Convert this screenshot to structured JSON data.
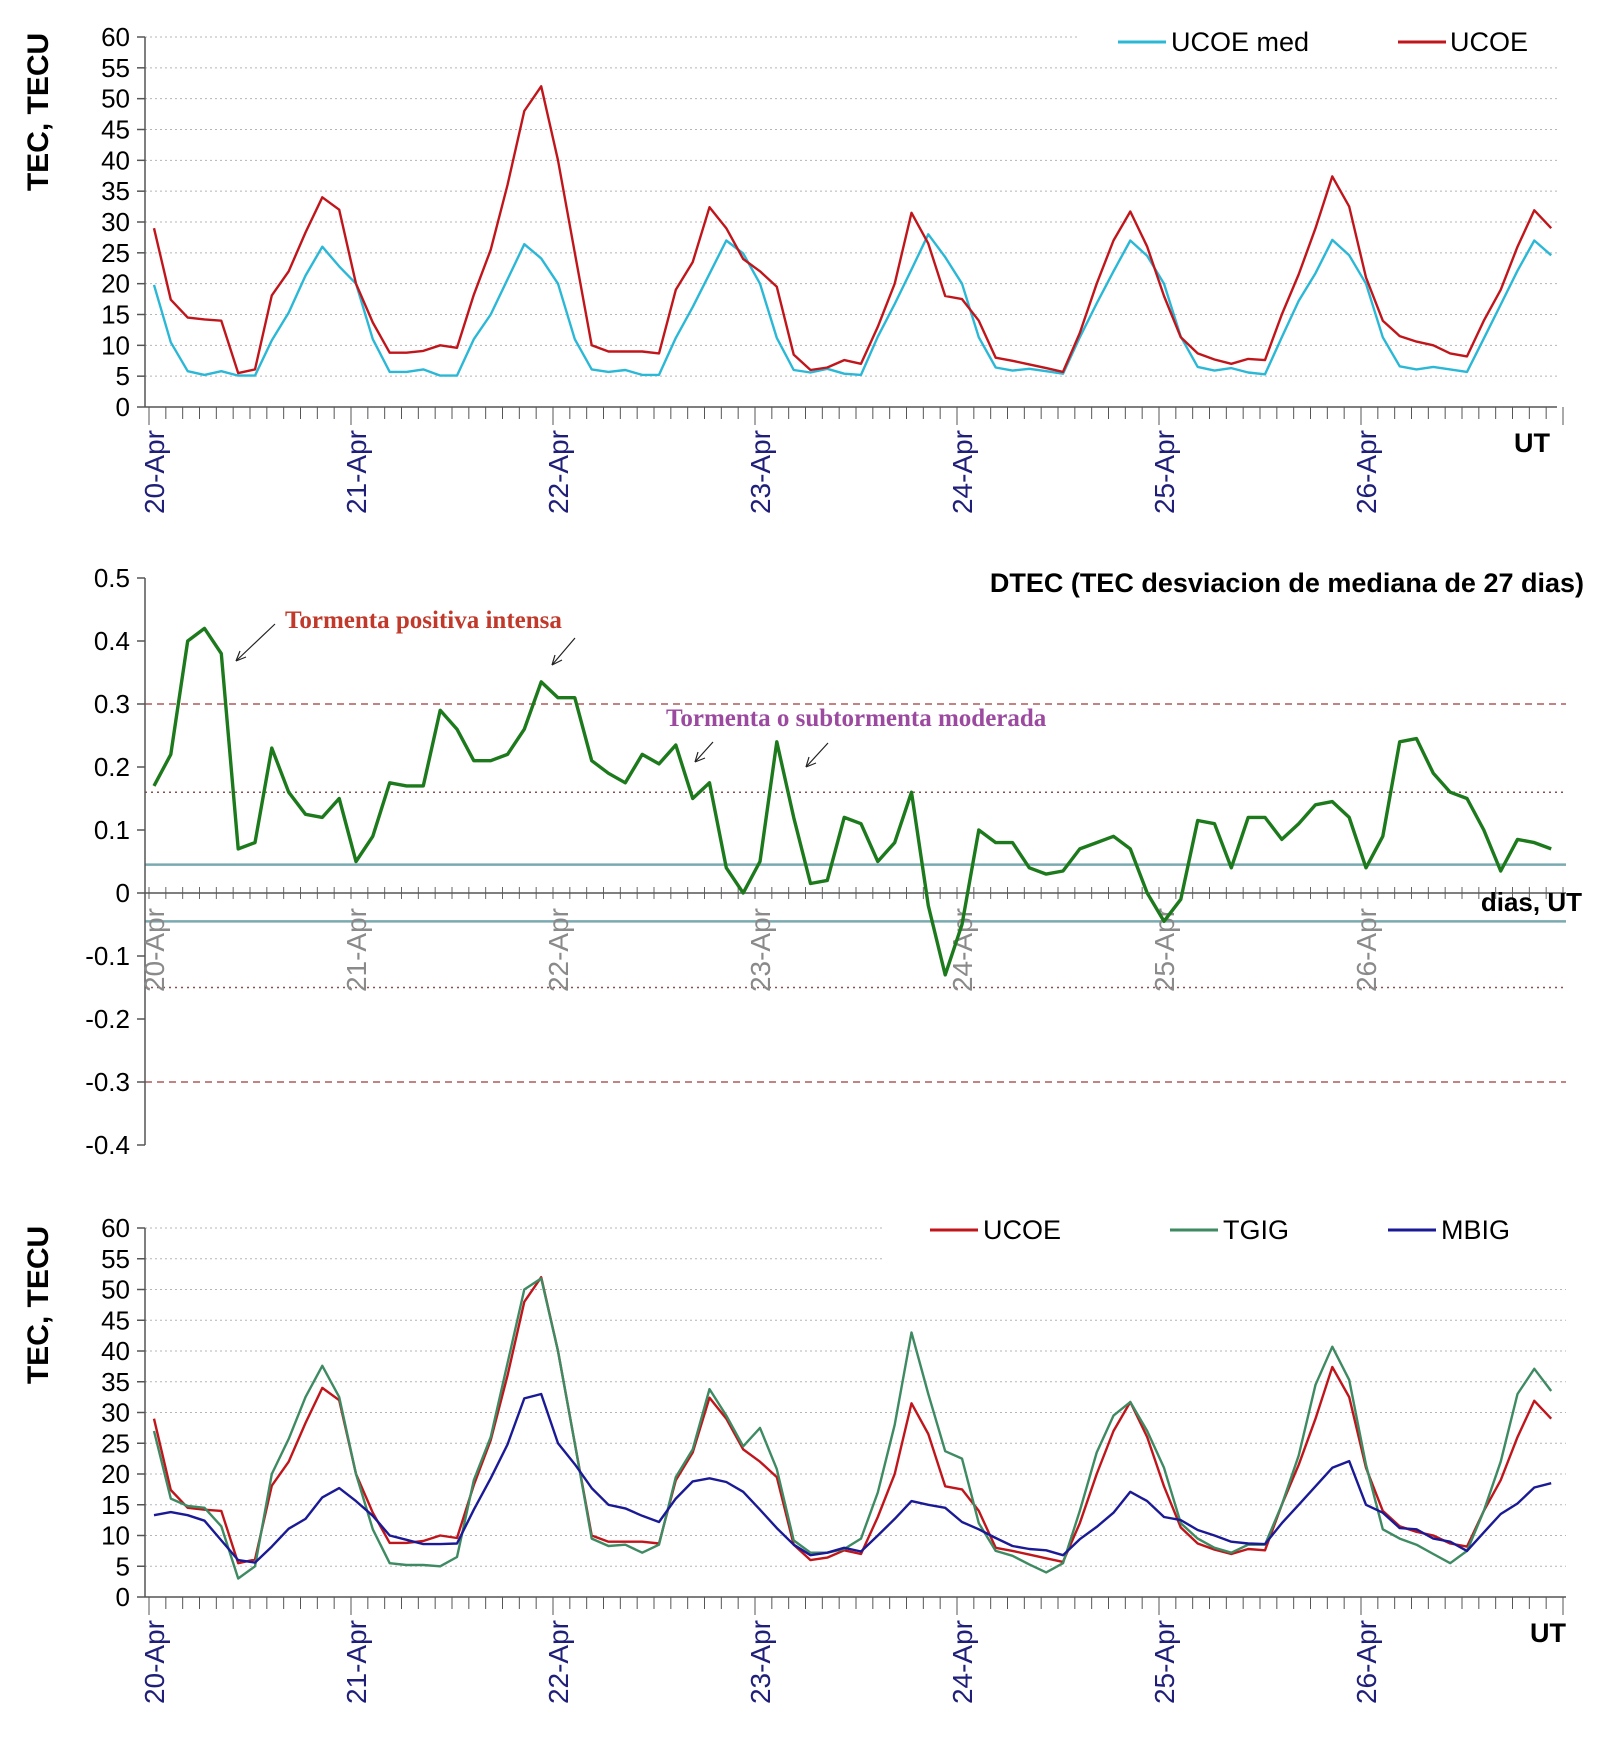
{
  "colors": {
    "ucoe": "#c0161b",
    "ucoe_med": "#2bb8d6",
    "tgig": "#3e8a62",
    "mbig": "#1a1a96",
    "dtec": "#1c7a1c",
    "date_label": "#1f1f7a",
    "date_label_grey": "#8a8a8a",
    "storm_positive": "#c0392b",
    "storm_moderate": "#9b4aa0",
    "threshold_dashed": "#b05a5a",
    "threshold_dotted": "#8a5050",
    "band_line": "#7aaab0"
  },
  "chart_data": [
    {
      "type": "line",
      "ylabel": "TEC, TECU",
      "xlabel": "UT",
      "ylim": [
        0,
        60
      ],
      "yticks": [
        "0",
        "5",
        "10",
        "15",
        "20",
        "25",
        "30",
        "35",
        "40",
        "45",
        "50",
        "55",
        "60"
      ],
      "grid": "dotted horizontal",
      "legend_position": "top-right",
      "x_step_hours": 2,
      "x_day_labels": [
        "20-Apr",
        "21-Apr",
        "22-Apr",
        "23-Apr",
        "24-Apr",
        "25-Apr",
        "26-Apr"
      ],
      "series": [
        {
          "name": "UCOE med",
          "color_key": "ucoe_med",
          "values": [
            19.8,
            10.5,
            5.8,
            5.2,
            5.8,
            5.1,
            5.1,
            10.8,
            15.3,
            21.3,
            26.0,
            22.8,
            20.0,
            11.0,
            5.7,
            5.7,
            6.1,
            5.1,
            5.1,
            11.0,
            15.0,
            20.7,
            26.4,
            24.1,
            20.0,
            11.0,
            6.1,
            5.7,
            6.0,
            5.2,
            5.2,
            11.2,
            16.2,
            21.6,
            27.0,
            24.9,
            20.0,
            11.2,
            6.0,
            5.6,
            6.2,
            5.4,
            5.2,
            11.4,
            16.7,
            22.3,
            28.0,
            24.3,
            20.0,
            11.3,
            6.4,
            5.9,
            6.2,
            5.8,
            5.4,
            11.3,
            16.8,
            22.0,
            27.0,
            24.5,
            20.0,
            11.4,
            6.5,
            5.9,
            6.3,
            5.6,
            5.3,
            11.3,
            17.2,
            21.7,
            27.1,
            24.6,
            20.0,
            11.3,
            6.6,
            6.1,
            6.5,
            6.1,
            5.7,
            11.1,
            16.6,
            22.1,
            27.0,
            24.6
          ]
        },
        {
          "name": "UCOE",
          "color_key": "ucoe",
          "values": [
            29.0,
            17.4,
            14.5,
            14.2,
            14.0,
            5.5,
            6.1,
            18.1,
            22.0,
            28.3,
            34.0,
            32.0,
            20.0,
            13.7,
            8.8,
            8.8,
            9.1,
            10.0,
            9.6,
            18.2,
            25.5,
            36.0,
            48.0,
            52.0,
            40.0,
            25.0,
            10.0,
            9.0,
            9.0,
            9.0,
            8.7,
            19.0,
            23.5,
            32.4,
            29.0,
            24.0,
            22.0,
            19.5,
            8.5,
            6.0,
            6.4,
            7.6,
            7.0,
            13.0,
            20.0,
            31.5,
            26.5,
            18.0,
            17.5,
            14.0,
            8.0,
            7.5,
            6.9,
            6.3,
            5.7,
            12.0,
            20.0,
            27.0,
            31.7,
            26.0,
            18.0,
            11.3,
            8.7,
            7.7,
            7.0,
            7.8,
            7.6,
            15.0,
            21.5,
            29.0,
            37.4,
            32.5,
            21.0,
            14.0,
            11.5,
            10.6,
            10.0,
            8.7,
            8.2,
            14.0,
            19.0,
            26.0,
            31.9,
            29.0
          ]
        }
      ]
    },
    {
      "type": "line",
      "title": "DTEC (TEC desviacion de mediana de 27 dias)",
      "xlabel": "dias, UT",
      "ylim": [
        -0.4,
        0.5
      ],
      "yticks": [
        "-0.4",
        "-0.3",
        "-0.2",
        "-0.1",
        "0",
        "0.1",
        "0.2",
        "0.3",
        "0.4",
        "0.5"
      ],
      "x_step_hours": 2,
      "x_day_labels": [
        "20-Apr",
        "21-Apr",
        "22-Apr",
        "23-Apr",
        "24-Apr",
        "25-Apr",
        "26-Apr"
      ],
      "thresholds_dashed": [
        0.3,
        -0.3
      ],
      "thresholds_dotted": [
        0.16,
        -0.15
      ],
      "band_lines": [
        0.045,
        -0.045
      ],
      "annotations": [
        "Tormenta positiva intensa",
        "Tormenta o subtormenta moderada"
      ],
      "series": [
        {
          "name": "DTEC",
          "color_key": "dtec",
          "values": [
            0.17,
            0.22,
            0.4,
            0.42,
            0.38,
            0.07,
            0.08,
            0.23,
            0.16,
            0.125,
            0.12,
            0.15,
            0.05,
            0.09,
            0.175,
            0.17,
            0.17,
            0.29,
            0.26,
            0.21,
            0.21,
            0.22,
            0.26,
            0.335,
            0.31,
            0.31,
            0.21,
            0.19,
            0.175,
            0.22,
            0.205,
            0.235,
            0.15,
            0.175,
            0.04,
            0.0,
            0.05,
            0.24,
            0.12,
            0.015,
            0.02,
            0.12,
            0.11,
            0.05,
            0.08,
            0.16,
            -0.02,
            -0.13,
            -0.05,
            0.1,
            0.08,
            0.08,
            0.04,
            0.03,
            0.035,
            0.07,
            0.08,
            0.09,
            0.07,
            0.0,
            -0.045,
            -0.01,
            0.115,
            0.11,
            0.04,
            0.12,
            0.12,
            0.085,
            0.11,
            0.14,
            0.145,
            0.12,
            0.04,
            0.09,
            0.24,
            0.245,
            0.19,
            0.16,
            0.15,
            0.1,
            0.035,
            0.085,
            0.08,
            0.07
          ]
        }
      ]
    },
    {
      "type": "line",
      "ylabel": "TEC, TECU",
      "xlabel": "UT",
      "ylim": [
        0,
        60
      ],
      "yticks": [
        "0",
        "5",
        "10",
        "15",
        "20",
        "25",
        "30",
        "35",
        "40",
        "45",
        "50",
        "55",
        "60"
      ],
      "grid": "dotted horizontal",
      "legend_position": "top-right",
      "x_step_hours": 2,
      "x_day_labels": [
        "20-Apr",
        "21-Apr",
        "22-Apr",
        "23-Apr",
        "24-Apr",
        "25-Apr",
        "26-Apr"
      ],
      "series": [
        {
          "name": "UCOE",
          "color_key": "ucoe",
          "values": [
            29.0,
            17.4,
            14.5,
            14.2,
            14.0,
            5.5,
            6.1,
            18.1,
            22.0,
            28.3,
            34.0,
            32.0,
            20.0,
            13.7,
            8.8,
            8.8,
            9.1,
            10.0,
            9.6,
            18.2,
            25.5,
            36.0,
            48.0,
            52.0,
            40.0,
            25.0,
            10.0,
            9.0,
            9.0,
            9.0,
            8.7,
            19.0,
            23.5,
            32.4,
            29.0,
            24.0,
            22.0,
            19.5,
            8.5,
            6.0,
            6.4,
            7.6,
            7.0,
            13.0,
            20.0,
            31.5,
            26.5,
            18.0,
            17.5,
            14.0,
            8.0,
            7.5,
            6.9,
            6.3,
            5.7,
            12.0,
            20.0,
            27.0,
            31.7,
            26.0,
            18.0,
            11.3,
            8.7,
            7.7,
            7.0,
            7.8,
            7.6,
            15.0,
            21.5,
            29.0,
            37.4,
            32.5,
            21.0,
            14.0,
            11.5,
            10.6,
            10.0,
            8.7,
            8.2,
            14.0,
            19.0,
            26.0,
            31.9,
            29.0
          ]
        },
        {
          "name": "TGIG",
          "color_key": "tgig",
          "values": [
            27.0,
            16.0,
            14.8,
            14.5,
            11.5,
            3.0,
            5.0,
            20.0,
            25.7,
            32.5,
            37.6,
            32.5,
            20.0,
            11.0,
            5.5,
            5.2,
            5.2,
            5.0,
            6.5,
            19.0,
            26.0,
            38.0,
            50.0,
            51.8,
            40.0,
            25.0,
            9.5,
            8.3,
            8.5,
            7.2,
            8.5,
            19.5,
            24.0,
            33.8,
            29.5,
            24.5,
            27.5,
            20.8,
            9.2,
            7.2,
            7.2,
            7.8,
            9.5,
            17.0,
            28.0,
            43.0,
            33.0,
            23.7,
            22.5,
            12.0,
            7.5,
            6.7,
            5.3,
            4.0,
            5.5,
            14.0,
            23.5,
            29.5,
            31.7,
            27.0,
            21.0,
            12.0,
            9.5,
            8.0,
            7.2,
            8.5,
            8.5,
            15.0,
            23.0,
            34.5,
            40.7,
            35.3,
            21.5,
            11.0,
            9.5,
            8.5,
            7.0,
            5.5,
            7.5,
            14.0,
            22.0,
            33.0,
            37.1,
            33.5
          ]
        },
        {
          "name": "MBIG",
          "color_key": "mbig",
          "values": [
            13.3,
            13.8,
            13.3,
            12.4,
            9.2,
            6.0,
            5.6,
            8.2,
            11.1,
            12.7,
            16.2,
            17.7,
            15.6,
            13.2,
            10.0,
            9.3,
            8.6,
            8.6,
            8.7,
            14.2,
            19.3,
            24.8,
            32.3,
            33.0,
            25.0,
            21.6,
            17.7,
            15.0,
            14.4,
            13.2,
            12.2,
            16.0,
            18.8,
            19.3,
            18.7,
            17.1,
            14.2,
            11.2,
            8.5,
            6.8,
            7.2,
            8.0,
            7.4,
            10.0,
            12.7,
            15.6,
            15.0,
            14.5,
            12.2,
            11.0,
            9.6,
            8.3,
            7.8,
            7.6,
            6.8,
            9.4,
            11.4,
            13.7,
            17.1,
            15.6,
            13.0,
            12.5,
            10.9,
            10.0,
            9.0,
            8.7,
            8.6,
            12.0,
            15.0,
            18.0,
            21.0,
            22.1,
            15.0,
            13.7,
            11.2,
            11.0,
            9.5,
            9.0,
            7.5,
            10.5,
            13.5,
            15.2,
            17.8,
            18.5
          ]
        }
      ]
    }
  ]
}
